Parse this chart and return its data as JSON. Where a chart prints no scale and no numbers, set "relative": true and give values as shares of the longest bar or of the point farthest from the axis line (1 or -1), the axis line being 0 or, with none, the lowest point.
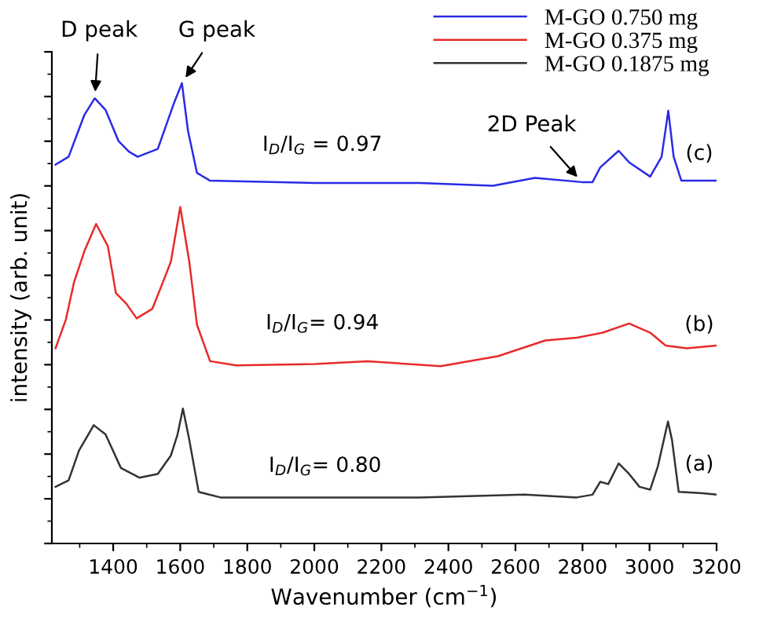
{
  "chart_data": {
    "type": "line",
    "relative": true,
    "xlabel": "Wavenumber (cm$^{−1}$)",
    "ylabel": "intensity (arb. unit)",
    "xlim": [
      1217,
      3200
    ],
    "xticks": [
      1400,
      1600,
      1800,
      2000,
      2200,
      2400,
      2600,
      2800,
      3000,
      3200
    ],
    "grid": false,
    "legend": "top right",
    "tick_labels": "x",
    "series": [
      {
        "name": "M-GO 0.750 mg",
        "color": "#2a2ae8",
        "x": [
          1228,
          1267,
          1314,
          1345,
          1377,
          1416,
          1447,
          1473,
          1533,
          1580,
          1605,
          1623,
          1650,
          1689,
          2002,
          2314,
          2533,
          2658,
          2798,
          2830,
          2853,
          2908,
          2939,
          3002,
          3036,
          3056,
          3072,
          3095,
          3200
        ],
        "values": [
          0.823,
          0.84,
          0.931,
          0.967,
          0.942,
          0.874,
          0.851,
          0.84,
          0.857,
          0.954,
          1.0,
          0.897,
          0.805,
          0.788,
          0.783,
          0.783,
          0.777,
          0.794,
          0.785,
          0.785,
          0.817,
          0.853,
          0.828,
          0.797,
          0.84,
          0.94,
          0.84,
          0.788,
          0.788
        ]
      },
      {
        "name": "M-GO 0.375 mg",
        "color": "#e82a2a",
        "x": [
          1228,
          1259,
          1283,
          1314,
          1349,
          1384,
          1408,
          1439,
          1470,
          1517,
          1548,
          1572,
          1600,
          1627,
          1650,
          1689,
          1767,
          2002,
          2158,
          2377,
          2548,
          2689,
          2783,
          2861,
          2939,
          3002,
          3048,
          3111,
          3200
        ],
        "values": [
          0.424,
          0.487,
          0.567,
          0.635,
          0.694,
          0.646,
          0.544,
          0.521,
          0.489,
          0.51,
          0.567,
          0.612,
          0.731,
          0.612,
          0.475,
          0.396,
          0.387,
          0.39,
          0.396,
          0.385,
          0.407,
          0.441,
          0.447,
          0.458,
          0.478,
          0.458,
          0.43,
          0.424,
          0.43
        ]
      },
      {
        "name": "M-GO 0.1875 mg",
        "color": "#333333",
        "x": [
          1228,
          1267,
          1298,
          1342,
          1377,
          1423,
          1478,
          1533,
          1572,
          1592,
          1608,
          1627,
          1655,
          1720,
          2002,
          2314,
          2627,
          2783,
          2830,
          2853,
          2877,
          2908,
          2939,
          2970,
          3002,
          3025,
          3055,
          3067,
          3087,
          3158,
          3200
        ],
        "values": [
          0.123,
          0.137,
          0.202,
          0.257,
          0.237,
          0.164,
          0.143,
          0.151,
          0.191,
          0.237,
          0.293,
          0.225,
          0.112,
          0.1,
          0.1,
          0.1,
          0.106,
          0.1,
          0.106,
          0.134,
          0.129,
          0.174,
          0.151,
          0.123,
          0.117,
          0.168,
          0.265,
          0.225,
          0.112,
          0.109,
          0.106
        ]
      }
    ],
    "annotations": [
      {
        "text": "D peak",
        "x": 1345,
        "y": 0.967
      },
      {
        "text": "G peak",
        "x": 1605,
        "y": 1.0
      },
      {
        "text": "2D Peak",
        "x": 2798,
        "y": 0.785
      },
      "I$_{D}$/I$_{G}$ = 0.97",
      "(c)",
      "I$_{D}$/I$_{G}$= 0.94",
      "(b)",
      "I$_{D}$/I$_{G}$= 0.80",
      "(a)"
    ]
  }
}
